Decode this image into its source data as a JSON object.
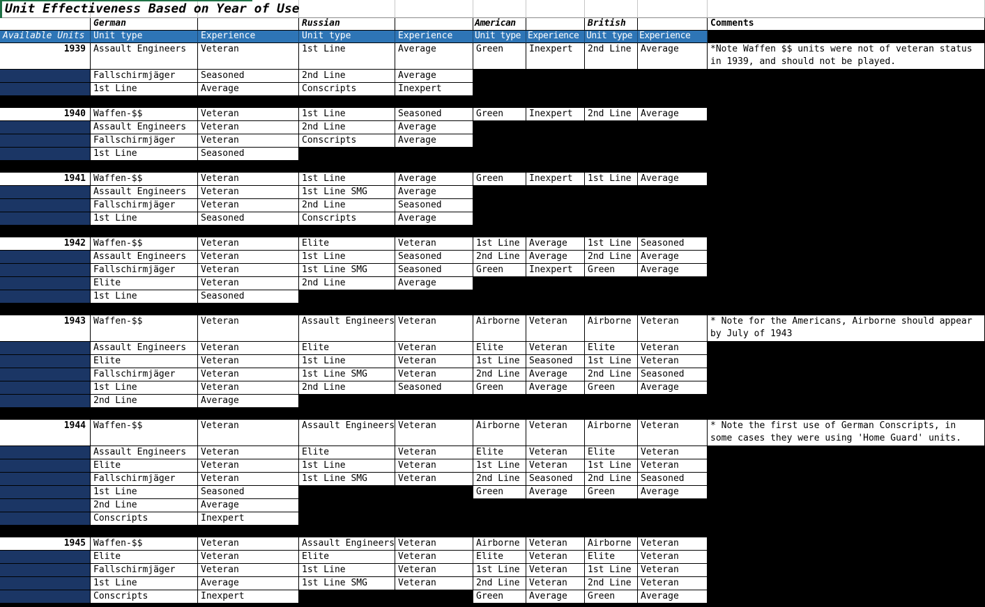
{
  "title": "Unit Effectiveness Based on Year of Use",
  "colors": {
    "header_blue": "#2E75B6",
    "year_navy": "#1B3665",
    "grid_background": "#000000",
    "selection_green": "#1E7145"
  },
  "header": {
    "available_units": "Available Units",
    "unit_type": "Unit type",
    "experience": "Experience",
    "countries": [
      "German",
      "Russian",
      "American",
      "British"
    ],
    "comments": "Comments"
  },
  "blocks": [
    {
      "year": "1939",
      "rows": [
        {
          "tall": true,
          "cells": [
            "Assault Engineers",
            "Veteran",
            "1st Line",
            "Average",
            "Green",
            "Inexpert",
            "2nd Line",
            "Average"
          ],
          "comment": "*Note Waffen $$ units were not of veteran status in 1939, and should not be played."
        },
        {
          "cells": [
            "Fallschirmjäger",
            "Seasoned",
            "2nd Line",
            "Average",
            null,
            null,
            null,
            null
          ],
          "comment": null
        },
        {
          "cells": [
            "1st Line",
            "Average",
            "Conscripts",
            "Inexpert",
            null,
            null,
            null,
            null
          ],
          "comment": null
        }
      ]
    },
    {
      "year": "1940",
      "rows": [
        {
          "cells": [
            "Waffen-$$",
            "Veteran",
            "1st Line",
            "Seasoned",
            "Green",
            "Inexpert",
            "2nd Line",
            "Average"
          ],
          "comment": null
        },
        {
          "cells": [
            "Assault Engineers",
            "Veteran",
            "2nd Line",
            "Average",
            null,
            null,
            null,
            null
          ],
          "comment": null
        },
        {
          "cells": [
            "Fallschirmjäger",
            "Veteran",
            "Conscripts",
            "Average",
            null,
            null,
            null,
            null
          ],
          "comment": null
        },
        {
          "cells": [
            "1st Line",
            "Seasoned",
            null,
            null,
            null,
            null,
            null,
            null
          ],
          "comment": null
        }
      ]
    },
    {
      "year": "1941",
      "rows": [
        {
          "cells": [
            "Waffen-$$",
            "Veteran",
            "1st Line",
            "Average",
            "Green",
            "Inexpert",
            "1st Line",
            "Average"
          ],
          "comment": null
        },
        {
          "cells": [
            "Assault Engineers",
            "Veteran",
            "1st Line SMG",
            "Average",
            null,
            null,
            null,
            null
          ],
          "comment": null
        },
        {
          "cells": [
            "Fallschirmjäger",
            "Veteran",
            "2nd Line",
            "Seasoned",
            null,
            null,
            null,
            null
          ],
          "comment": null
        },
        {
          "cells": [
            "1st Line",
            "Seasoned",
            "Conscripts",
            "Average",
            null,
            null,
            null,
            null
          ],
          "comment": null
        }
      ]
    },
    {
      "year": "1942",
      "rows": [
        {
          "cells": [
            "Waffen-$$",
            "Veteran",
            "Elite",
            "Veteran",
            "1st Line",
            "Average",
            "1st Line",
            "Seasoned"
          ],
          "comment": null
        },
        {
          "cells": [
            "Assault Engineers",
            "Veteran",
            "1st Line",
            "Seasoned",
            "2nd Line",
            "Average",
            "2nd Line",
            "Average"
          ],
          "comment": null
        },
        {
          "cells": [
            "Fallschirmjäger",
            "Veteran",
            "1st Line SMG",
            "Seasoned",
            "Green",
            "Inexpert",
            "Green",
            "Average"
          ],
          "comment": null
        },
        {
          "cells": [
            "Elite",
            "Veteran",
            "2nd Line",
            "Average",
            null,
            null,
            null,
            null
          ],
          "comment": null
        },
        {
          "cells": [
            "1st Line",
            "Seasoned",
            null,
            null,
            null,
            null,
            null,
            null
          ],
          "comment": null
        }
      ]
    },
    {
      "year": "1943",
      "rows": [
        {
          "tall": true,
          "cells": [
            "Waffen-$$",
            "Veteran",
            "Assault Engineers",
            "Veteran",
            "Airborne",
            "Veteran",
            "Airborne",
            "Veteran"
          ],
          "comment": "* Note for the Americans, Airborne should appear by July of 1943"
        },
        {
          "cells": [
            "Assault Engineers",
            "Veteran",
            "Elite",
            "Veteran",
            "Elite",
            "Veteran",
            "Elite",
            "Veteran"
          ],
          "comment": null
        },
        {
          "cells": [
            "Elite",
            "Veteran",
            "1st Line",
            "Veteran",
            "1st Line",
            "Seasoned",
            "1st Line",
            "Veteran"
          ],
          "comment": null
        },
        {
          "cells": [
            "Fallschirmjäger",
            "Veteran",
            "1st Line SMG",
            "Veteran",
            "2nd Line",
            "Average",
            "2nd Line",
            "Seasoned"
          ],
          "comment": null
        },
        {
          "cells": [
            "1st Line",
            "Veteran",
            "2nd Line",
            "Seasoned",
            "Green",
            "Average",
            "Green",
            "Average"
          ],
          "comment": null
        },
        {
          "cells": [
            "2nd Line",
            "Average",
            null,
            null,
            null,
            null,
            null,
            null
          ],
          "comment": null
        }
      ]
    },
    {
      "year": "1944",
      "rows": [
        {
          "tall": true,
          "cells": [
            "Waffen-$$",
            "Veteran",
            "Assault Engineers",
            "Veteran",
            "Airborne",
            "Veteran",
            "Airborne",
            "Veteran"
          ],
          "comment": "* Note the first use of German Conscripts, in some cases they were using 'Home Guard' units."
        },
        {
          "cells": [
            "Assault Engineers",
            "Veteran",
            "Elite",
            "Veteran",
            "Elite",
            "Veteran",
            "Elite",
            "Veteran"
          ],
          "comment": null
        },
        {
          "cells": [
            "Elite",
            "Veteran",
            "1st Line",
            "Veteran",
            "1st Line",
            "Veteran",
            "1st Line",
            "Veteran"
          ],
          "comment": null
        },
        {
          "cells": [
            "Fallschirmjäger",
            "Veteran",
            "1st Line SMG",
            "Veteran",
            "2nd Line",
            "Seasoned",
            "2nd Line",
            "Seasoned"
          ],
          "comment": null
        },
        {
          "cells": [
            "1st Line",
            "Seasoned",
            null,
            null,
            "Green",
            "Average",
            "Green",
            "Average"
          ],
          "comment": null
        },
        {
          "cells": [
            "2nd Line",
            "Average",
            null,
            null,
            null,
            null,
            null,
            null
          ],
          "comment": null
        },
        {
          "cells": [
            "Conscripts",
            "Inexpert",
            null,
            null,
            null,
            null,
            null,
            null
          ],
          "comment": null
        }
      ]
    },
    {
      "year": "1945",
      "rows": [
        {
          "cells": [
            "Waffen-$$",
            "Veteran",
            "Assault Engineers",
            "Veteran",
            "Airborne",
            "Veteran",
            "Airborne",
            "Veteran"
          ],
          "comment": null
        },
        {
          "cells": [
            "Elite",
            "Veteran",
            "Elite",
            "Veteran",
            "Elite",
            "Veteran",
            "Elite",
            "Veteran"
          ],
          "comment": null
        },
        {
          "cells": [
            "Fallschirmjäger",
            "Veteran",
            "1st Line",
            "Veteran",
            "1st Line",
            "Veteran",
            "1st Line",
            "Veteran"
          ],
          "comment": null
        },
        {
          "cells": [
            "1st Line",
            "Average",
            "1st Line SMG",
            "Veteran",
            "2nd Line",
            "Veteran",
            "2nd Line",
            "Veteran"
          ],
          "comment": null
        },
        {
          "cells": [
            "Conscripts",
            "Inexpert",
            null,
            null,
            "Green",
            "Average",
            "Green",
            "Average"
          ],
          "comment": null
        }
      ]
    }
  ]
}
